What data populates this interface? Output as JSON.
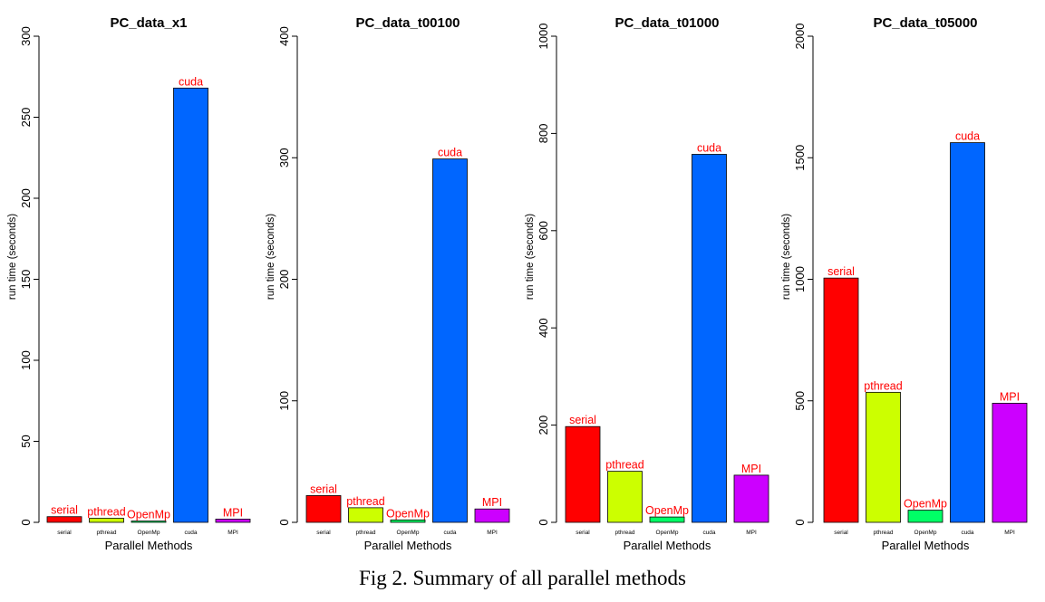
{
  "caption": "Fig 2. Summary of all parallel methods",
  "chart_data": [
    {
      "type": "bar",
      "title": "PC_data_x1",
      "xlabel": "Parallel Methods",
      "ylabel": "run time (seconds)",
      "ylim": [
        0,
        300
      ],
      "yticks": [
        0,
        50,
        100,
        150,
        200,
        250,
        300
      ],
      "categories": [
        "serial",
        "pthread",
        "OpenMp",
        "cuda",
        "MPI"
      ],
      "values": [
        3.5,
        2.5,
        0.8,
        268,
        2
      ],
      "colors": [
        "#ff0000",
        "#ccff00",
        "#00ff66",
        "#0066ff",
        "#cc00ff"
      ],
      "bar_labels": [
        "serial",
        "pthread",
        "OpenMp",
        "cuda",
        "MPI"
      ]
    },
    {
      "type": "bar",
      "title": "PC_data_t00100",
      "xlabel": "Parallel Methods",
      "ylabel": "run time (seconds)",
      "ylim": [
        0,
        400
      ],
      "yticks": [
        0,
        100,
        200,
        300,
        400
      ],
      "categories": [
        "serial",
        "pthread",
        "OpenMp",
        "cuda",
        "MPI"
      ],
      "values": [
        22,
        12,
        2,
        299,
        11
      ],
      "colors": [
        "#ff0000",
        "#ccff00",
        "#00ff66",
        "#0066ff",
        "#cc00ff"
      ],
      "bar_labels": [
        "serial",
        "pthread",
        "OpenMp",
        "cuda",
        "MPI"
      ]
    },
    {
      "type": "bar",
      "title": "PC_data_t01000",
      "xlabel": "Parallel Methods",
      "ylabel": "run time (seconds)",
      "ylim": [
        0,
        1000
      ],
      "yticks": [
        0,
        200,
        400,
        600,
        800,
        1000
      ],
      "categories": [
        "serial",
        "pthread",
        "OpenMp",
        "cuda",
        "MPI"
      ],
      "values": [
        197,
        105,
        11,
        757,
        97
      ],
      "colors": [
        "#ff0000",
        "#ccff00",
        "#00ff66",
        "#0066ff",
        "#cc00ff"
      ],
      "bar_labels": [
        "serial",
        "pthread",
        "OpenMp",
        "cuda",
        "MPI"
      ]
    },
    {
      "type": "bar",
      "title": "PC_data_t05000",
      "xlabel": "Parallel Methods",
      "ylabel": "run time (seconds)",
      "ylim": [
        0,
        2000
      ],
      "yticks": [
        0,
        500,
        1000,
        1500,
        2000
      ],
      "categories": [
        "serial",
        "pthread",
        "OpenMp",
        "cuda",
        "MPI"
      ],
      "values": [
        1005,
        535,
        50,
        1562,
        490
      ],
      "colors": [
        "#ff0000",
        "#ccff00",
        "#00ff66",
        "#0066ff",
        "#cc00ff"
      ],
      "bar_labels": [
        "serial",
        "pthread",
        "OpenMp",
        "cuda",
        "MPI"
      ]
    }
  ]
}
